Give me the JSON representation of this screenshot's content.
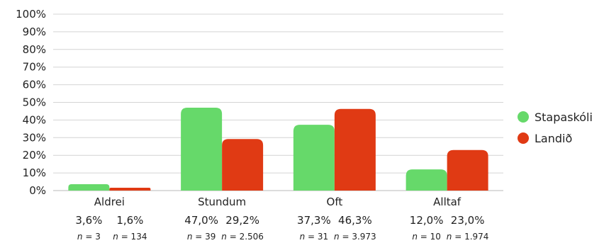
{
  "chart_data": {
    "type": "bar",
    "categories": [
      "Aldrei",
      "Stundum",
      "Oft",
      "Alltaf"
    ],
    "series": [
      {
        "name": "Stapaskóli",
        "color": "#66d96a",
        "values": [
          3.6,
          47.0,
          37.3,
          12.0
        ],
        "pct_labels": [
          "3,6%",
          "47,0%",
          "37,3%",
          "12,0%"
        ],
        "n_values": [
          "3",
          "39",
          "31",
          "10"
        ]
      },
      {
        "name": "Landið",
        "color": "#e03a14",
        "values": [
          1.6,
          29.2,
          46.3,
          23.0
        ],
        "pct_labels": [
          "1,6%",
          "29,2%",
          "46,3%",
          "23,0%"
        ],
        "n_values": [
          "134",
          "2.506",
          "3.973",
          "1.974"
        ]
      }
    ],
    "yticks": [
      "0%",
      "10%",
      "20%",
      "30%",
      "40%",
      "50%",
      "60%",
      "70%",
      "80%",
      "90%",
      "100%"
    ],
    "ylim": [
      0,
      100
    ],
    "n_prefix": "n",
    "n_eq": " = ",
    "grid": true,
    "legend_position": "right"
  }
}
